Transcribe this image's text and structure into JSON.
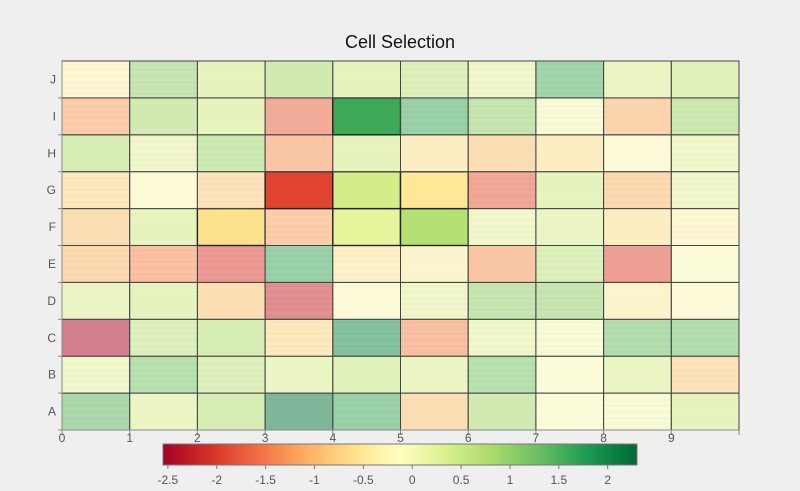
{
  "chart_data": {
    "type": "heatmap",
    "title": "Cell Selection",
    "x_ticks": [
      "0",
      "1",
      "2",
      "3",
      "4",
      "5",
      "6",
      "7",
      "8",
      "9"
    ],
    "y_categories": [
      "A",
      "B",
      "C",
      "D",
      "E",
      "F",
      "G",
      "H",
      "I",
      "J"
    ],
    "colorscale": "RdYlGn",
    "zlim": [
      -2.55,
      2.3
    ],
    "colorbar_ticks": [
      "-2.5",
      "-2",
      "-1.5",
      "-1",
      "-0.5",
      "0",
      "0.5",
      "1",
      "1.5",
      "2"
    ],
    "colorbar_tick_values": [
      -2.5,
      -2,
      -1.5,
      -1,
      -0.5,
      0,
      0.5,
      1,
      1.5,
      2
    ],
    "values": [
      [
        1.4,
        0.3,
        0.7,
        2.2,
        1.6,
        -0.9,
        0.8,
        -0.1,
        0.0,
        0.4
      ],
      [
        0.2,
        1.2,
        0.6,
        0.3,
        0.5,
        0.3,
        1.2,
        -0.1,
        0.3,
        -0.8
      ],
      [
        -2.5,
        0.6,
        0.7,
        -0.7,
        2.0,
        -1.4,
        0.2,
        0.0,
        1.3,
        1.3
      ],
      [
        0.3,
        0.4,
        -0.9,
        -2.2,
        -0.2,
        0.2,
        1.0,
        1.0,
        -0.4,
        -0.2
      ],
      [
        -1.0,
        -1.4,
        -2.0,
        1.6,
        -0.5,
        -0.4,
        -1.3,
        0.6,
        -1.9,
        -0.1
      ],
      [
        -0.9,
        0.4,
        -0.6,
        -1.2,
        0.2,
        0.7,
        0.2,
        0.3,
        -0.6,
        -0.3
      ],
      [
        -0.7,
        -0.2,
        -0.8,
        -1.9,
        0.4,
        -0.5,
        -1.8,
        0.4,
        -1.0,
        0.2
      ],
      [
        0.7,
        0.2,
        0.9,
        -1.3,
        0.4,
        -0.6,
        -0.9,
        -0.6,
        -0.2,
        0.2
      ],
      [
        -1.2,
        0.8,
        0.4,
        -1.7,
        1.6,
        1.6,
        1.0,
        0.0,
        -1.1,
        0.9
      ],
      [
        -0.3,
        1.0,
        0.4,
        0.8,
        0.4,
        0.6,
        0.2,
        1.5,
        0.3,
        0.5
      ]
    ],
    "selected_cells": [
      [
        "I",
        4
      ],
      [
        "G",
        3
      ],
      [
        "G",
        4
      ],
      [
        "G",
        5
      ],
      [
        "F",
        2
      ],
      [
        "F",
        4
      ],
      [
        "F",
        5
      ]
    ]
  }
}
